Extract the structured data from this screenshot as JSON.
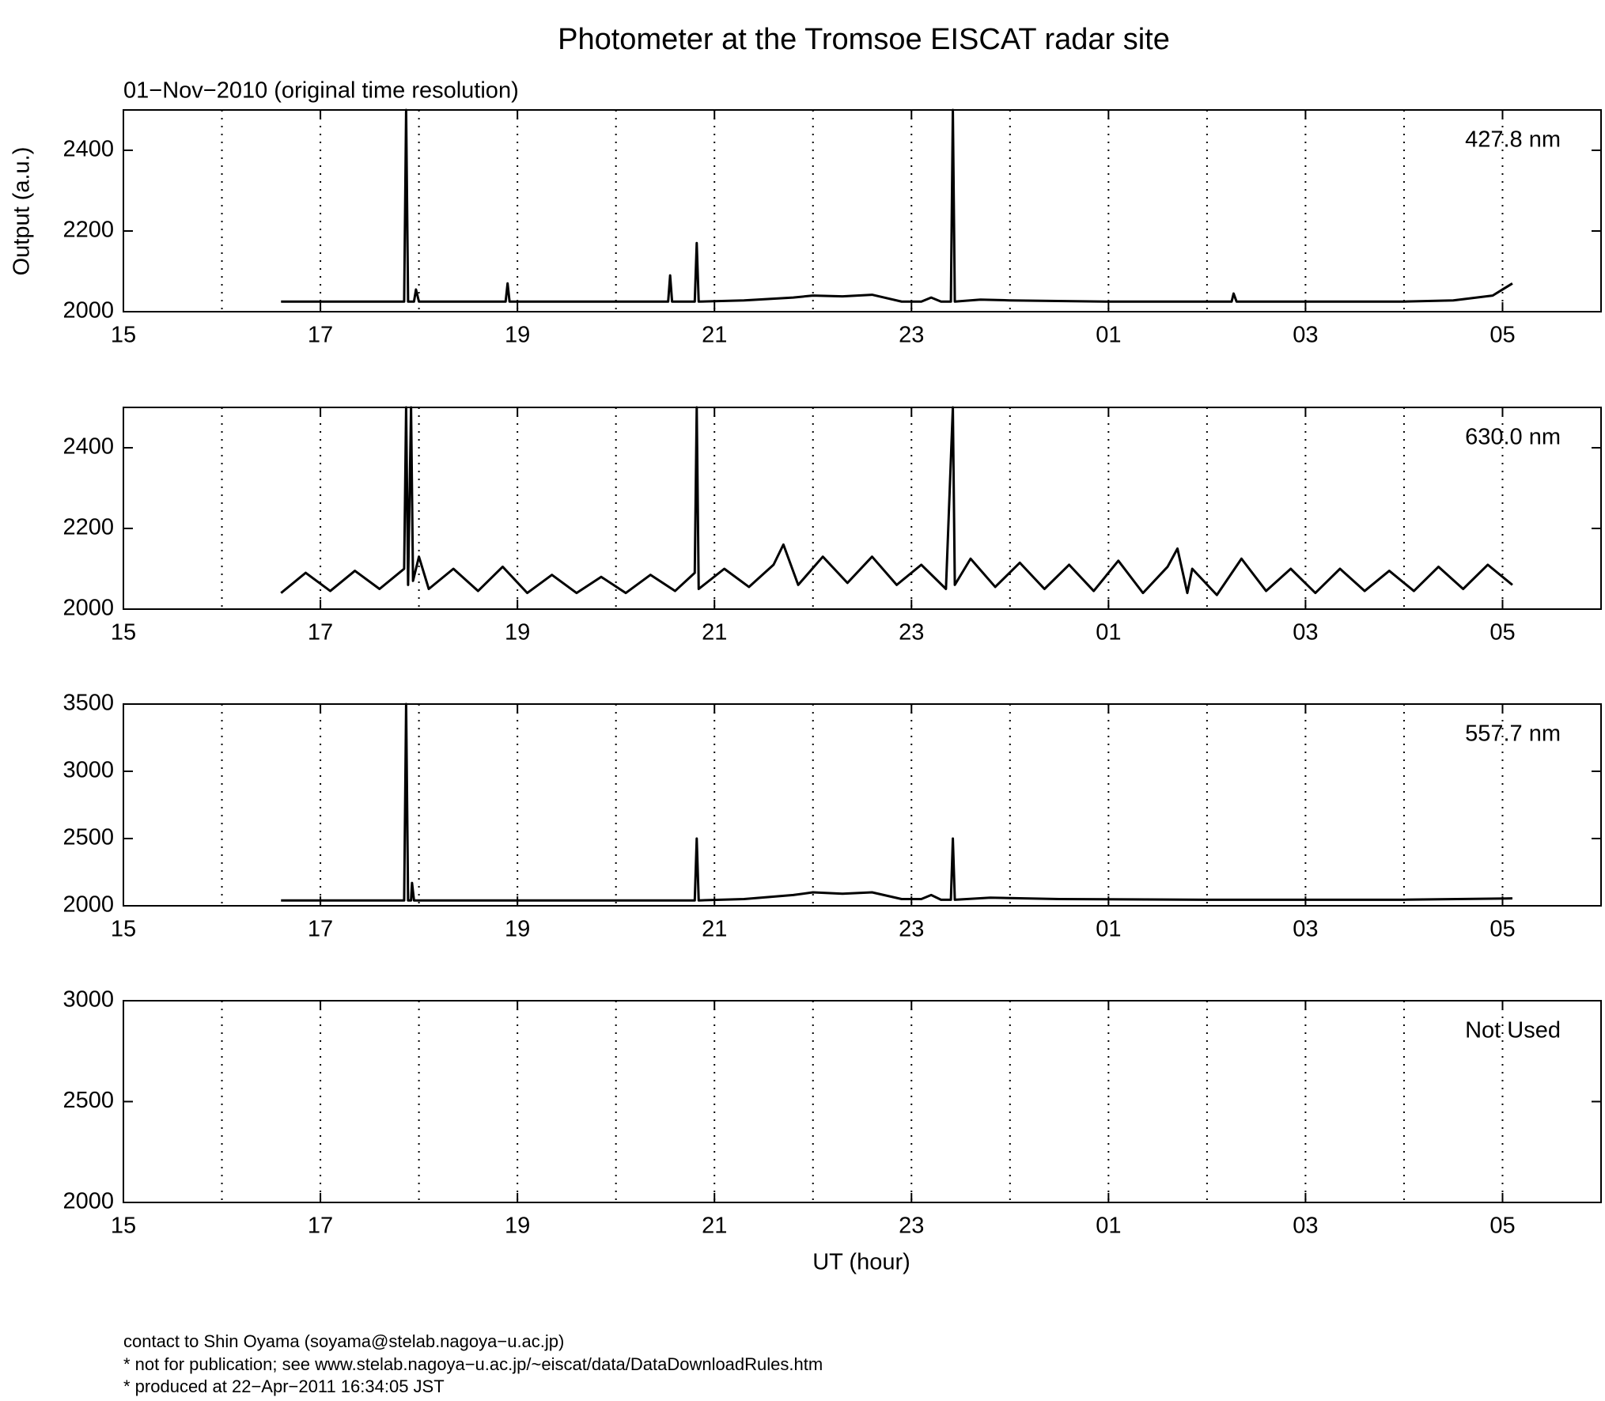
{
  "title": "Photometer at the Tromsoe EISCAT radar site",
  "subtitle": "01−Nov−2010 (original time resolution)",
  "xlabel": "UT (hour)",
  "ylabel": "Output (a.u.)",
  "footer": [
    "contact to Shin Oyama (soyama@stelab.nagoya−u.ac.jp)",
    "* not for publication; see www.stelab.nagoya−u.ac.jp/~eiscat/data/DataDownloadRules.htm",
    "* produced at 22−Apr−2011 16:34:05 JST"
  ],
  "chart_data": [
    {
      "type": "line",
      "annotation": "427.8 nm",
      "xlim": [
        15,
        30
      ],
      "ylim": [
        2000,
        2500
      ],
      "yticks": [
        2000,
        2200,
        2400
      ],
      "xticks": [
        15,
        17,
        19,
        21,
        23,
        {
          "value": 25,
          "label": "01"
        },
        {
          "value": 27,
          "label": "03"
        },
        {
          "value": 29,
          "label": "05"
        }
      ],
      "xgrid": [
        16,
        17,
        18,
        19,
        20,
        21,
        22,
        23,
        24,
        25,
        26,
        27,
        28,
        29
      ],
      "x": [
        16.6,
        17.0,
        17.5,
        17.85,
        17.87,
        17.89,
        17.95,
        17.97,
        18.0,
        18.5,
        18.88,
        18.9,
        18.92,
        19.5,
        20.0,
        20.53,
        20.55,
        20.57,
        20.8,
        20.82,
        20.84,
        21.3,
        21.8,
        22.0,
        22.3,
        22.6,
        22.9,
        23.1,
        23.2,
        23.3,
        23.4,
        23.42,
        23.44,
        23.7,
        24.0,
        25,
        26,
        26.25,
        26.27,
        26.3,
        27,
        28,
        28.5,
        28.9,
        29.0,
        29.1
      ],
      "series": [
        {
          "color": "#000000",
          "values": [
            2025,
            2025,
            2025,
            2025,
            2500,
            2025,
            2025,
            2055,
            2025,
            2025,
            2025,
            2070,
            2025,
            2025,
            2025,
            2025,
            2090,
            2025,
            2025,
            2170,
            2025,
            2028,
            2035,
            2040,
            2038,
            2042,
            2025,
            2025,
            2035,
            2025,
            2025,
            2500,
            2025,
            2030,
            2028,
            2025,
            2025,
            2025,
            2045,
            2025,
            2025,
            2025,
            2028,
            2040,
            2055,
            2070
          ]
        }
      ]
    },
    {
      "type": "line",
      "annotation": "630.0 nm",
      "xlim": [
        15,
        30
      ],
      "ylim": [
        2000,
        2500
      ],
      "yticks": [
        2000,
        2200,
        2400
      ],
      "xticks": [
        15,
        17,
        19,
        21,
        23,
        {
          "value": 25,
          "label": "01"
        },
        {
          "value": 27,
          "label": "03"
        },
        {
          "value": 29,
          "label": "05"
        }
      ],
      "xgrid": [
        16,
        17,
        18,
        19,
        20,
        21,
        22,
        23,
        24,
        25,
        26,
        27,
        28,
        29
      ],
      "x": [
        16.6,
        16.85,
        17.1,
        17.35,
        17.6,
        17.85,
        17.87,
        17.89,
        17.92,
        17.94,
        18.0,
        18.1,
        18.35,
        18.6,
        18.85,
        19.1,
        19.35,
        19.6,
        19.85,
        20.1,
        20.35,
        20.6,
        20.8,
        20.82,
        20.84,
        21.1,
        21.35,
        21.6,
        21.7,
        21.85,
        22.1,
        22.35,
        22.6,
        22.85,
        23.1,
        23.35,
        23.42,
        23.44,
        23.6,
        23.85,
        24.1,
        24.35,
        24.6,
        24.85,
        25.1,
        25.35,
        25.6,
        25.7,
        25.8,
        25.85,
        26.1,
        26.35,
        26.6,
        26.85,
        27.1,
        27.35,
        27.6,
        27.85,
        28.1,
        28.35,
        28.6,
        28.85,
        29.1
      ],
      "series": [
        {
          "color": "#000000",
          "values": [
            2040,
            2090,
            2045,
            2095,
            2050,
            2100,
            2500,
            2060,
            2500,
            2070,
            2130,
            2050,
            2100,
            2045,
            2105,
            2040,
            2085,
            2040,
            2080,
            2040,
            2085,
            2045,
            2090,
            2500,
            2050,
            2100,
            2055,
            2110,
            2160,
            2060,
            2130,
            2065,
            2130,
            2060,
            2110,
            2050,
            2500,
            2060,
            2125,
            2055,
            2115,
            2050,
            2110,
            2045,
            2120,
            2040,
            2105,
            2150,
            2040,
            2100,
            2035,
            2125,
            2045,
            2100,
            2040,
            2100,
            2045,
            2095,
            2045,
            2105,
            2050,
            2110,
            2060
          ]
        }
      ]
    },
    {
      "type": "line",
      "annotation": "557.7 nm",
      "xlim": [
        15,
        30
      ],
      "ylim": [
        2000,
        3500
      ],
      "yticks": [
        2000,
        2500,
        3000,
        3500
      ],
      "xticks": [
        15,
        17,
        19,
        21,
        23,
        {
          "value": 25,
          "label": "01"
        },
        {
          "value": 27,
          "label": "03"
        },
        {
          "value": 29,
          "label": "05"
        }
      ],
      "xgrid": [
        16,
        17,
        18,
        19,
        20,
        21,
        22,
        23,
        24,
        25,
        26,
        27,
        28,
        29
      ],
      "x": [
        16.6,
        17.5,
        17.85,
        17.87,
        17.89,
        17.92,
        17.93,
        17.95,
        19,
        20,
        20.8,
        20.82,
        20.84,
        21.3,
        21.8,
        22.0,
        22.3,
        22.6,
        22.9,
        23.1,
        23.2,
        23.3,
        23.4,
        23.42,
        23.44,
        23.8,
        24.5,
        26,
        28,
        29.1
      ],
      "series": [
        {
          "color": "#000000",
          "values": [
            2040,
            2040,
            2040,
            3500,
            2040,
            2040,
            2170,
            2040,
            2040,
            2040,
            2040,
            2500,
            2040,
            2050,
            2080,
            2100,
            2090,
            2100,
            2050,
            2050,
            2080,
            2045,
            2045,
            2500,
            2045,
            2060,
            2050,
            2045,
            2045,
            2055
          ]
        }
      ]
    },
    {
      "type": "line",
      "annotation": "Not Used",
      "xlim": [
        15,
        30
      ],
      "ylim": [
        2000,
        3000
      ],
      "yticks": [
        2000,
        2500,
        3000
      ],
      "xticks": [
        15,
        17,
        19,
        21,
        23,
        {
          "value": 25,
          "label": "01"
        },
        {
          "value": 27,
          "label": "03"
        },
        {
          "value": 29,
          "label": "05"
        }
      ],
      "xgrid": [
        16,
        17,
        18,
        19,
        20,
        21,
        22,
        23,
        24,
        25,
        26,
        27,
        28,
        29
      ],
      "x": [],
      "series": []
    }
  ]
}
